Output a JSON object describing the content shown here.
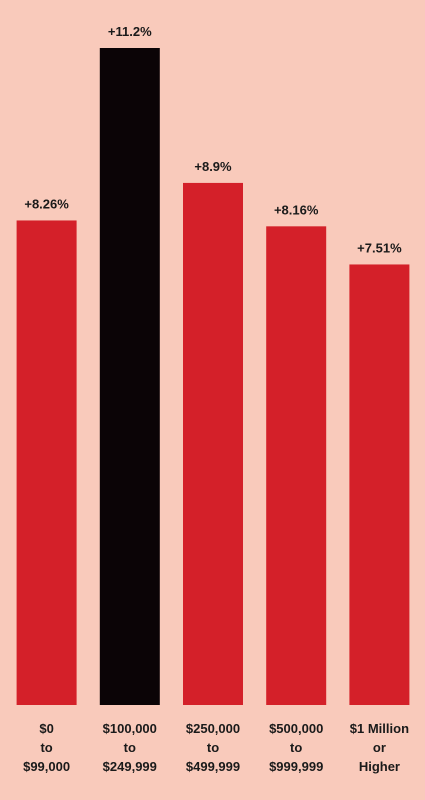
{
  "chart_data": {
    "type": "bar",
    "categories": [
      [
        "$0",
        "to",
        "$99,000"
      ],
      [
        "$100,000",
        "to",
        "$249,999"
      ],
      [
        "$250,000",
        "to",
        "$499,999"
      ],
      [
        "$500,000",
        "to",
        "$999,999"
      ],
      [
        "$1 Million",
        "or",
        "Higher"
      ]
    ],
    "values": [
      8.26,
      11.2,
      8.9,
      8.16,
      7.51
    ],
    "value_labels": [
      "+8.26%",
      "+11.2%",
      "+8.9%",
      "+8.16%",
      "+7.51%"
    ],
    "colors": [
      "#d42029",
      "#0b0406",
      "#d42029",
      "#d42029",
      "#d42029"
    ]
  }
}
